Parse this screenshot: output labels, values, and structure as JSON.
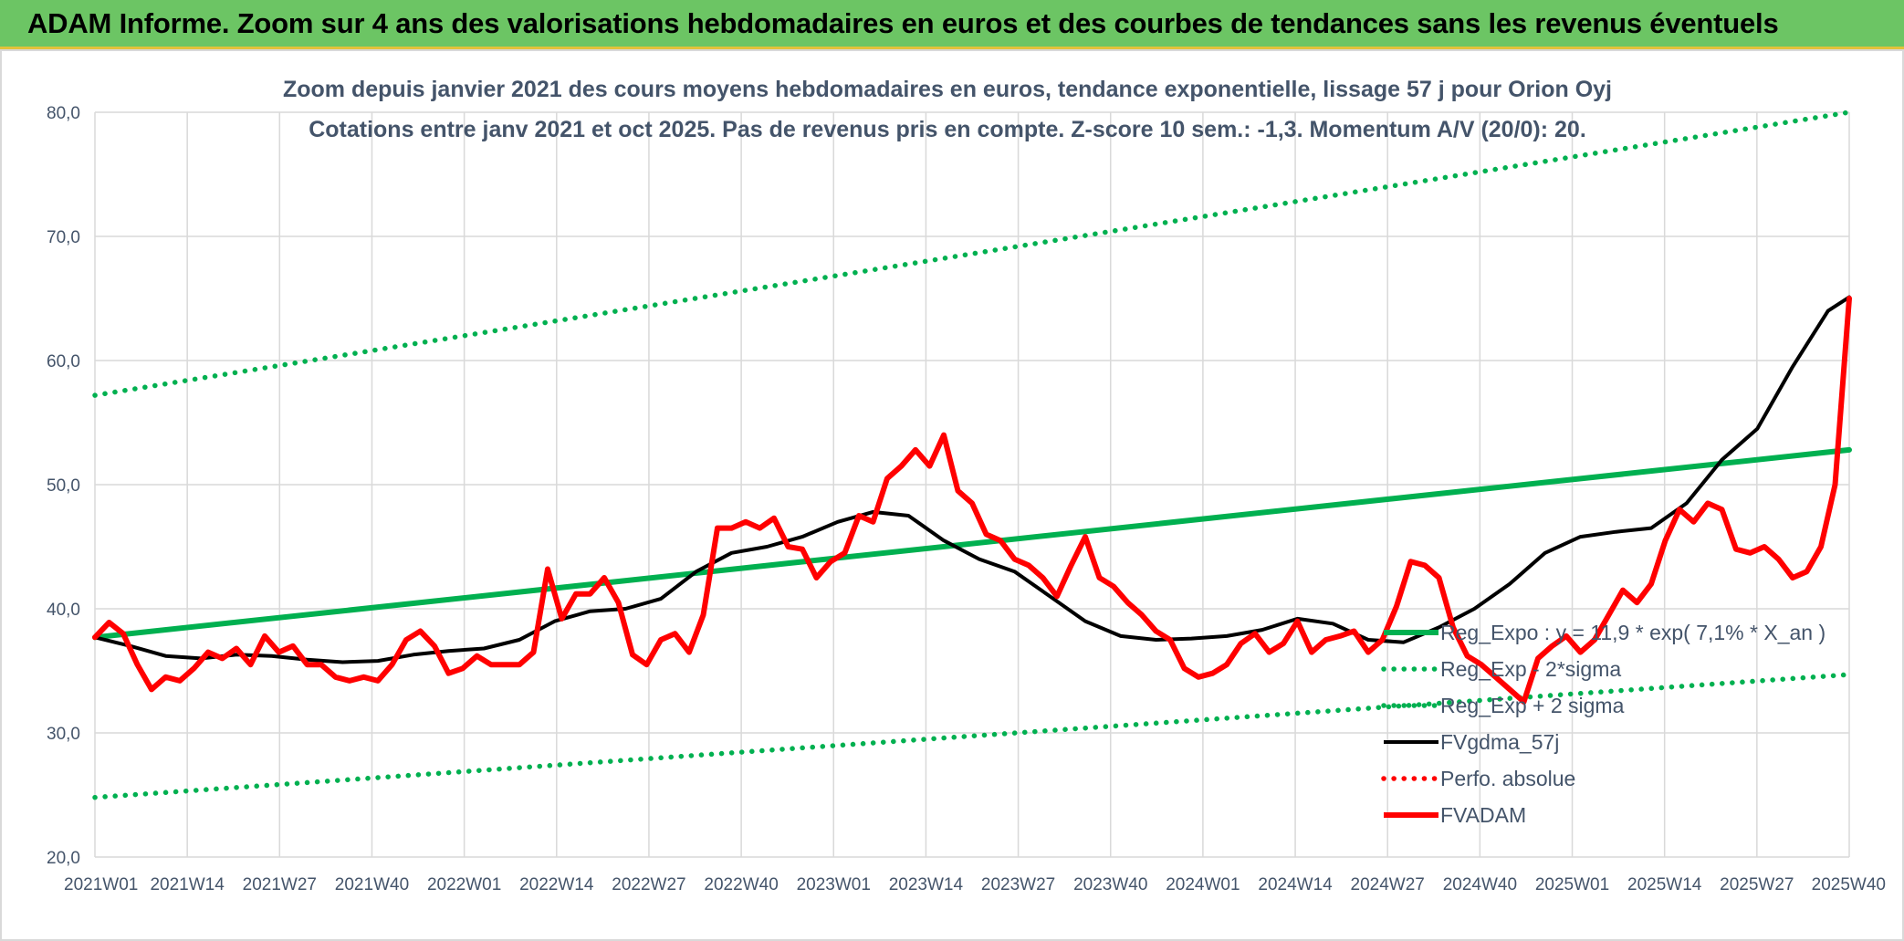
{
  "banner": {
    "title": "ADAM Informe. Zoom sur 4 ans des valorisations hebdomadaires en euros et des courbes de tendances sans les revenus éventuels"
  },
  "colors": {
    "banner_bg": "#6cc564",
    "trend_green": "#00b050",
    "price_red": "#ff0000",
    "smooth_black": "#000000",
    "text": "#44546a",
    "grid": "#d9d9d9"
  },
  "chart_data": {
    "type": "line",
    "title_line1": "Zoom depuis janvier 2021 des cours moyens hebdomadaires en euros, tendance exponentielle, lissage 57 j pour Orion Oyj",
    "title_line2": "Cotations entre janv 2021 et oct 2025. Pas de revenus pris en compte. Z-score 10 sem.: -1,3. Momentum A/V (20/0): 20.",
    "xlabel": "",
    "ylabel": "",
    "ylim": [
      20,
      80
    ],
    "yticks": [
      "20,0",
      "30,0",
      "40,0",
      "50,0",
      "60,0",
      "70,0",
      "80,0"
    ],
    "xticks": [
      "2021W01",
      "2021W14",
      "2021W27",
      "2021W40",
      "2022W01",
      "2022W14",
      "2022W27",
      "2022W40",
      "2023W01",
      "2023W14",
      "2023W27",
      "2023W40",
      "2024W01",
      "2024W14",
      "2024W27",
      "2024W40",
      "2025W01",
      "2025W14",
      "2025W27",
      "2025W40"
    ],
    "x_index_range": [
      0,
      248
    ],
    "grid": true,
    "legend_position": "right",
    "legend": [
      {
        "label": "Reg_Expo : y = 11,9 * exp( 7,1% *  X_an )",
        "key": "reg_expo"
      },
      {
        "label": "Reg_Exp - 2*sigma",
        "key": "reg_minus"
      },
      {
        "label": "Reg_Exp + 2 sigma",
        "key": "reg_plus"
      },
      {
        "label": "FVgdma_57j",
        "key": "fvgdma"
      },
      {
        "label": "Perfo. absolue",
        "key": "perfo"
      },
      {
        "label": "FVADAM",
        "key": "fvadam"
      }
    ],
    "series": [
      {
        "name": "Reg_Expo",
        "key": "reg_expo",
        "style": "solid",
        "color": "#00b050",
        "x": [
          0,
          248
        ],
        "values": [
          37.7,
          52.8
        ]
      },
      {
        "name": "Reg_Exp - 2*sigma",
        "key": "reg_minus",
        "style": "dotted",
        "color": "#00b050",
        "x": [
          0,
          248
        ],
        "values": [
          24.8,
          34.7
        ]
      },
      {
        "name": "Reg_Exp + 2 sigma",
        "key": "reg_plus",
        "style": "dotted",
        "color": "#00b050",
        "x": [
          0,
          248
        ],
        "values": [
          57.2,
          80.0
        ]
      },
      {
        "name": "FVgdma_57j",
        "key": "fvgdma",
        "style": "solid",
        "color": "#000000",
        "x": [
          0,
          5,
          10,
          15,
          20,
          25,
          30,
          35,
          40,
          45,
          50,
          55,
          60,
          65,
          70,
          75,
          80,
          85,
          90,
          95,
          100,
          105,
          110,
          115,
          120,
          125,
          130,
          135,
          140,
          145,
          150,
          155,
          160,
          165,
          170,
          175,
          180,
          185,
          190,
          195,
          200,
          205,
          210,
          215,
          220,
          225,
          230,
          235,
          240,
          245,
          248
        ],
        "values": [
          37.7,
          37.0,
          36.2,
          36.0,
          36.3,
          36.2,
          35.9,
          35.7,
          35.8,
          36.3,
          36.6,
          36.8,
          37.5,
          39.0,
          39.8,
          40.0,
          40.8,
          43.0,
          44.5,
          45.0,
          45.8,
          47.0,
          47.8,
          47.5,
          45.5,
          44.0,
          43.0,
          41.0,
          39.0,
          37.8,
          37.5,
          37.6,
          37.8,
          38.3,
          39.2,
          38.8,
          37.5,
          37.3,
          38.5,
          40.0,
          42.0,
          44.5,
          45.8,
          46.2,
          46.5,
          48.5,
          52.0,
          54.5,
          59.5,
          64.0,
          65.1
        ]
      },
      {
        "name": "Perfo. absolue",
        "key": "perfo",
        "style": "dotted",
        "color": "#ff0000",
        "x": [],
        "values": []
      },
      {
        "name": "FVADAM",
        "key": "fvadam",
        "style": "solid",
        "color": "#ff0000",
        "x": [
          0,
          2,
          4,
          6,
          8,
          10,
          12,
          14,
          16,
          18,
          20,
          22,
          24,
          26,
          28,
          30,
          32,
          34,
          36,
          38,
          40,
          42,
          44,
          46,
          48,
          50,
          52,
          54,
          56,
          58,
          60,
          62,
          64,
          66,
          68,
          70,
          72,
          74,
          76,
          78,
          80,
          82,
          84,
          86,
          88,
          90,
          92,
          94,
          96,
          98,
          100,
          102,
          104,
          106,
          108,
          110,
          112,
          114,
          116,
          118,
          120,
          122,
          124,
          126,
          128,
          130,
          132,
          134,
          136,
          138,
          140,
          142,
          144,
          146,
          148,
          150,
          152,
          154,
          156,
          158,
          160,
          162,
          164,
          166,
          168,
          170,
          172,
          174,
          176,
          178,
          180,
          182,
          184,
          186,
          188,
          190,
          192,
          194,
          196,
          198,
          200,
          202,
          204,
          206,
          208,
          210,
          212,
          214,
          216,
          218,
          220,
          222,
          224,
          226,
          228,
          230,
          232,
          234,
          236,
          238,
          240,
          242,
          244,
          246,
          248
        ],
        "values": [
          37.7,
          38.9,
          38.0,
          35.5,
          33.5,
          34.5,
          34.2,
          35.2,
          36.5,
          36.0,
          36.8,
          35.5,
          37.8,
          36.5,
          37.0,
          35.5,
          35.5,
          34.5,
          34.2,
          34.5,
          34.2,
          35.5,
          37.5,
          38.2,
          37.0,
          34.8,
          35.2,
          36.2,
          35.5,
          35.5,
          35.5,
          36.5,
          43.2,
          39.2,
          41.2,
          41.2,
          42.5,
          40.5,
          36.3,
          35.5,
          37.5,
          38.0,
          36.5,
          39.5,
          46.5,
          46.5,
          47.0,
          46.5,
          47.3,
          45.0,
          44.8,
          42.5,
          43.8,
          44.5,
          47.5,
          47.0,
          50.5,
          51.5,
          52.8,
          51.5,
          54.0,
          49.5,
          48.5,
          46.0,
          45.5,
          44.0,
          43.5,
          42.5,
          41.0,
          43.5,
          45.8,
          42.5,
          41.8,
          40.5,
          39.5,
          38.2,
          37.5,
          35.2,
          34.5,
          34.8,
          35.5,
          37.2,
          38.0,
          36.5,
          37.2,
          39.0,
          36.5,
          37.5,
          37.8,
          38.2,
          36.5,
          37.5,
          40.2,
          43.8,
          43.5,
          42.5,
          38.5,
          36.2,
          35.5,
          34.5,
          33.5,
          32.5,
          36.0,
          37.0,
          37.8,
          36.5,
          37.5,
          39.5,
          41.5,
          40.5,
          42.0,
          45.5,
          48.0,
          47.0,
          48.5,
          48.0,
          44.8,
          44.5,
          45.0,
          44.0,
          42.5,
          43.0,
          45.0,
          50.0,
          65.0
        ]
      }
    ]
  }
}
